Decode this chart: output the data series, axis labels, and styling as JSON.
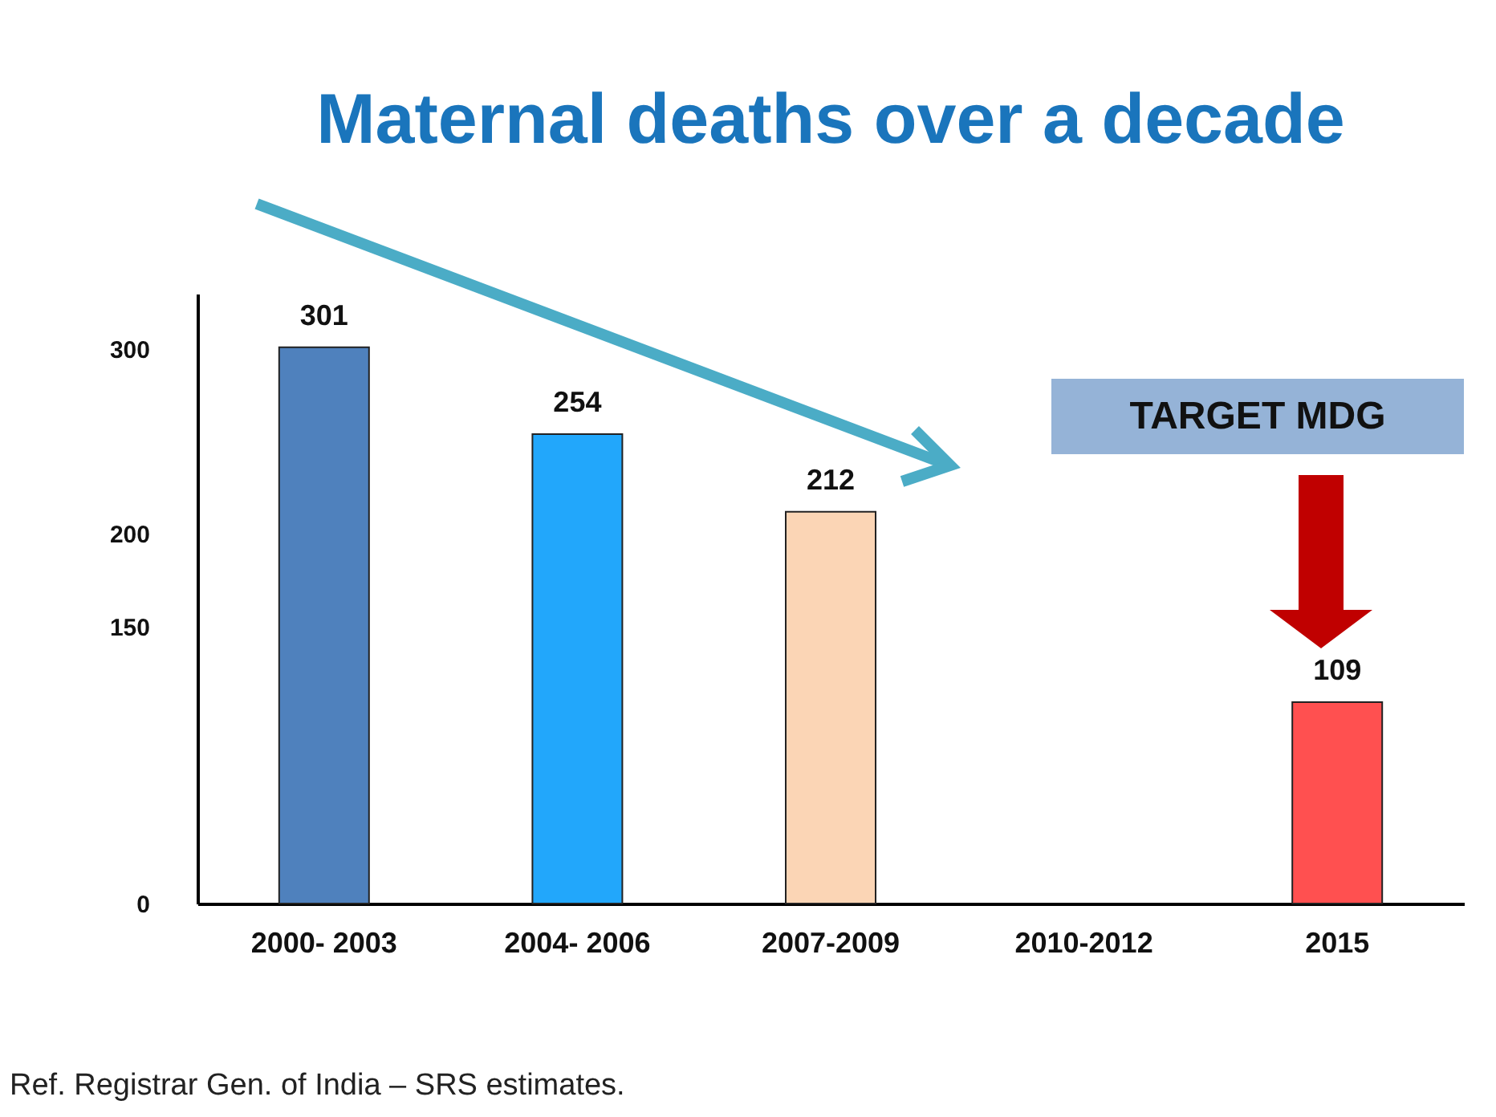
{
  "chart_data": {
    "type": "bar",
    "title": "Maternal deaths over a decade",
    "categories": [
      "2000- 2003",
      "2004- 2006",
      "2007-2009",
      "2010-2012",
      "2015"
    ],
    "values": [
      301,
      254,
      212,
      null,
      109
    ],
    "colors": [
      "#4f81bd",
      "#22a7fb",
      "#fbd5b5",
      "#cccccc",
      "#ff5050"
    ],
    "data_labels": true,
    "ylim": [
      0,
      330
    ],
    "yticks": [
      0,
      150,
      200,
      300
    ],
    "grid": false,
    "annotations": [
      "TARGET MDG",
      "Ref. Registrar Gen. of India – SRS estimates."
    ]
  }
}
